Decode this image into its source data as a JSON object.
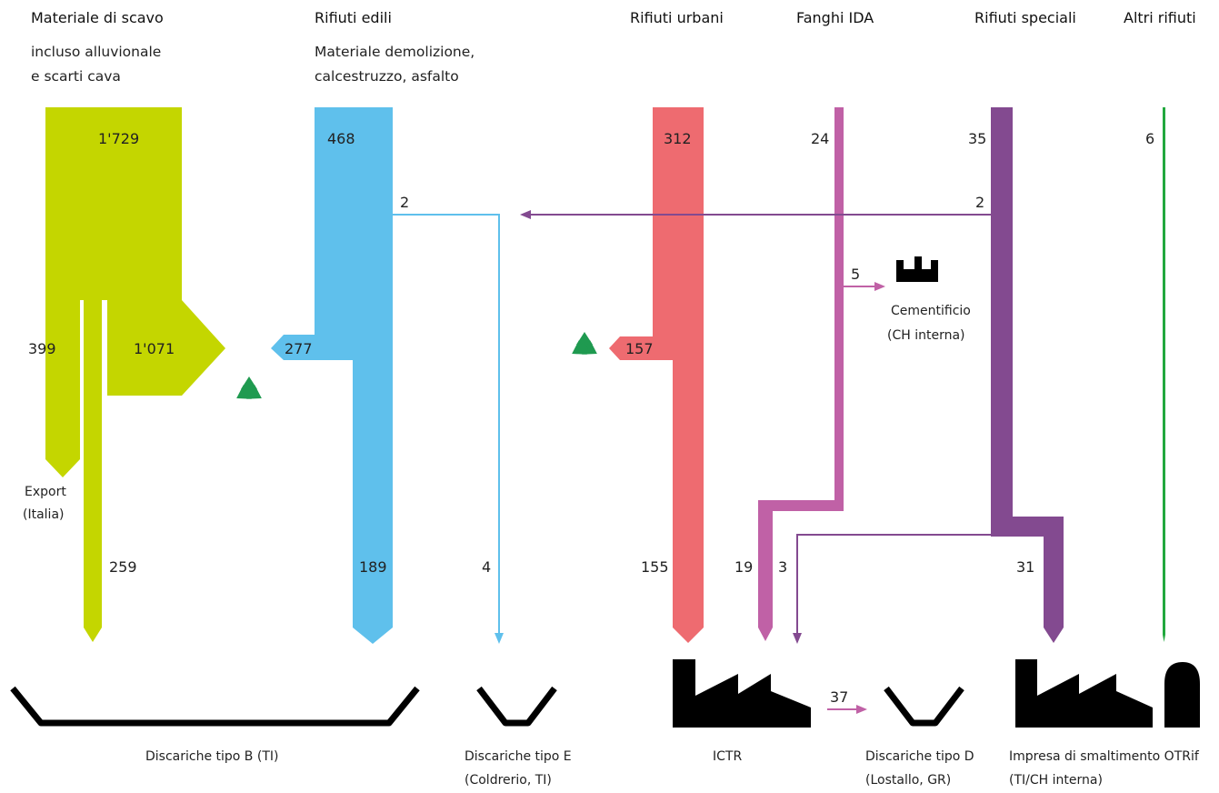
{
  "colors": {
    "scavo": "#c4d600",
    "edili": "#5fc0ec",
    "urbani": "#ee6b70",
    "fanghi": "#c061a6",
    "speciali": "#834a90",
    "altri": "#22a83e",
    "recycle": "#1f9a50",
    "black": "#000000"
  },
  "headers": {
    "scavo": "Materiale di scavo",
    "scavo_sub1": "incluso alluvionale",
    "scavo_sub2": "e scarti cava",
    "edili": "Rifiuti edili",
    "edili_sub1": "Materiale demolizione,",
    "edili_sub2": "calcestruzzo, asfalto",
    "urbani": "Rifiuti urbani",
    "fanghi": "Fanghi IDA",
    "speciali": "Rifiuti speciali",
    "altri": "Altri rifiuti"
  },
  "flows": {
    "scavo_total": "1'729",
    "scavo_export": "399",
    "scavo_recycled": "1'071",
    "scavo_landfill": "259",
    "edili_total": "468",
    "edili_to_e": "2",
    "edili_recycled": "277",
    "edili_landfill": "189",
    "e_total": "4",
    "urbani_total": "312",
    "urbani_recycled": "157",
    "urbani_icr": "155",
    "fanghi_total": "24",
    "fanghi_cement": "5",
    "fanghi_icr": "19",
    "speciali_total": "35",
    "speciali_to_e": "2",
    "speciali_icr": "3",
    "speciali_otrif": "31",
    "altri_total": "6",
    "icr_to_d": "37"
  },
  "labels": {
    "export1": "Export",
    "export2": "(Italia)",
    "cement1": "Cementificio",
    "cement2": "(CH interna)",
    "disc_b": "Discariche tipo B (TI)",
    "disc_e1": "Discariche tipo E",
    "disc_e2": "(Coldrerio, TI)",
    "icr": "ICTR",
    "disc_d1": "Discariche tipo D",
    "disc_d2": "(Lostallo, GR)",
    "otrif1": "Impresa di smaltimento OTRif",
    "otrif2": "(TI/CH interna)"
  },
  "icons": [
    "recycle-icon",
    "factory-icon",
    "landfill-icon",
    "plant-icon"
  ]
}
